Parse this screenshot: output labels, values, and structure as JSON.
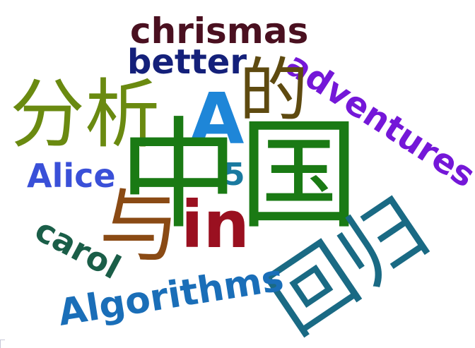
{
  "words": [
    {
      "text": "chrismas",
      "color": "#4a1020"
    },
    {
      "text": "better",
      "color": "#14207a"
    },
    {
      "text": "adventures",
      "color": "#7417d8"
    },
    {
      "text": "分析",
      "color": "#6a8a10"
    },
    {
      "text": "的",
      "color": "#5e4a10"
    },
    {
      "text": "A",
      "color": "#1e86d8"
    },
    {
      "text": "Alice",
      "color": "#3a50d8"
    },
    {
      "text": "5",
      "color": "#1a7aa0"
    },
    {
      "text": "中国",
      "color": "#1a7a14"
    },
    {
      "text": "与",
      "color": "#8a4a14"
    },
    {
      "text": "in",
      "color": "#9a1020"
    },
    {
      "text": "carol",
      "color": "#1a5e48"
    },
    {
      "text": "回归",
      "color": "#1a6a84"
    },
    {
      "text": "Algorithms",
      "color": "#1a6eb8"
    }
  ]
}
